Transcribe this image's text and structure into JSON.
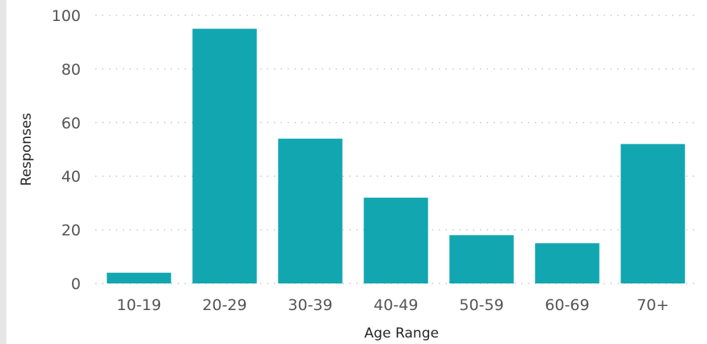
{
  "chart_data": {
    "type": "bar",
    "title": "",
    "xlabel": "Age Range",
    "ylabel": "Responses",
    "categories": [
      "10-19",
      "20-29",
      "30-39",
      "40-49",
      "50-59",
      "60-69",
      "70+"
    ],
    "values": [
      4,
      95,
      54,
      32,
      18,
      15,
      52
    ],
    "ylim": [
      0,
      100
    ],
    "yticks": [
      0,
      20,
      40,
      60,
      80,
      100
    ],
    "grid": true,
    "bar_color": "#12A6B1",
    "grid_color": "#c8c8c8"
  }
}
